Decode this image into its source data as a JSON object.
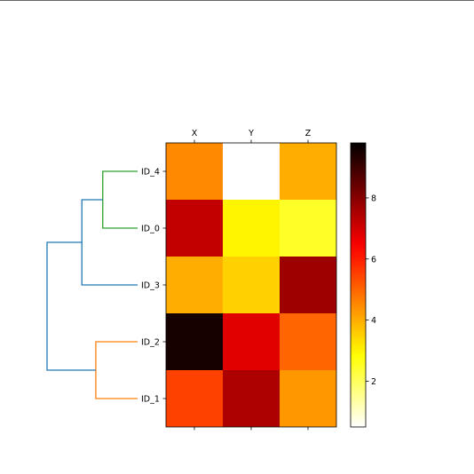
{
  "chart_data": {
    "type": "heatmap",
    "title": "",
    "columns": [
      "X",
      "Y",
      "Z"
    ],
    "rows": [
      "ID_4",
      "ID_0",
      "ID_3",
      "ID_2",
      "ID_1"
    ],
    "values": [
      [
        4.5,
        0.5,
        4.0
      ],
      [
        7.2,
        3.0,
        2.5
      ],
      [
        4.0,
        3.5,
        7.7
      ],
      [
        9.5,
        6.8,
        5.0
      ],
      [
        5.5,
        7.5,
        4.3
      ]
    ],
    "colorscale": "hot_r",
    "colorbar": {
      "range": [
        0.5,
        9.8
      ],
      "ticks": [
        2,
        4,
        6,
        8
      ],
      "tick_labels": [
        "2",
        "4",
        "6",
        "8"
      ]
    },
    "dendrogram": {
      "side": "left",
      "leaves": [
        "ID_4",
        "ID_0",
        "ID_3",
        "ID_2",
        "ID_1"
      ],
      "merges": [
        {
          "children": [
            "ID_4",
            "ID_0"
          ],
          "height": 1.0,
          "color": "#2ca02c"
        },
        {
          "children": [
            "ID_2",
            "ID_1"
          ],
          "height": 1.2,
          "color": "#ff7f0e"
        },
        {
          "children": [
            "ID_4+ID_0",
            "ID_3"
          ],
          "height": 1.6,
          "color": "#1f77b4"
        },
        {
          "children": [
            "ID_4+ID_0+ID_3",
            "ID_2+ID_1"
          ],
          "height": 2.6,
          "color": "#1f77b4"
        }
      ]
    }
  }
}
